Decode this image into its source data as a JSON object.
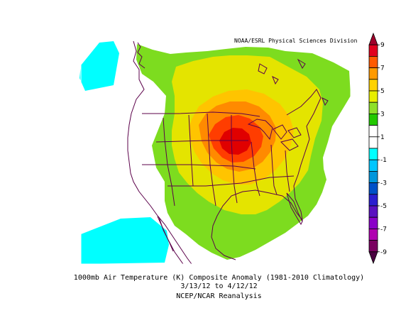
{
  "credit": "NOAA/ESRL Physical Sciences Division",
  "caption": {
    "line1": "1000mb Air Temperature (K) Composite Anomaly (1981-2010 Climatology)",
    "line2": "3/13/12  to 4/12/12",
    "line3": "NCEP/NCAR Reanalysis"
  },
  "colorbar": {
    "labels": [
      "9",
      "7",
      "5",
      "3",
      "1",
      "-1",
      "-3",
      "-5",
      "-7",
      "-9"
    ],
    "colors": [
      "#a0002a",
      "#e0001e",
      "#ff5a00",
      "#ff9a00",
      "#ffd200",
      "#e8ee00",
      "#8ee02a",
      "#22c800",
      "#ffffff",
      "#ffffff",
      "#00ffff",
      "#00c6ff",
      "#0096dc",
      "#0050c8",
      "#2b1ed0",
      "#5a10c0",
      "#8a00c8",
      "#b000b0",
      "#7a0060",
      "#4a0040"
    ]
  },
  "colors": {
    "coastline": "#5b004a",
    "zone_1_3": "#7ddc1f",
    "zone_3_5": "#e4e400",
    "zone_5_7": "#ffc400",
    "zone_7_9": "#ff8a00",
    "zone_9_11": "#ff3d00",
    "zone_11p": "#e00000",
    "cold": "#00ffff"
  }
}
